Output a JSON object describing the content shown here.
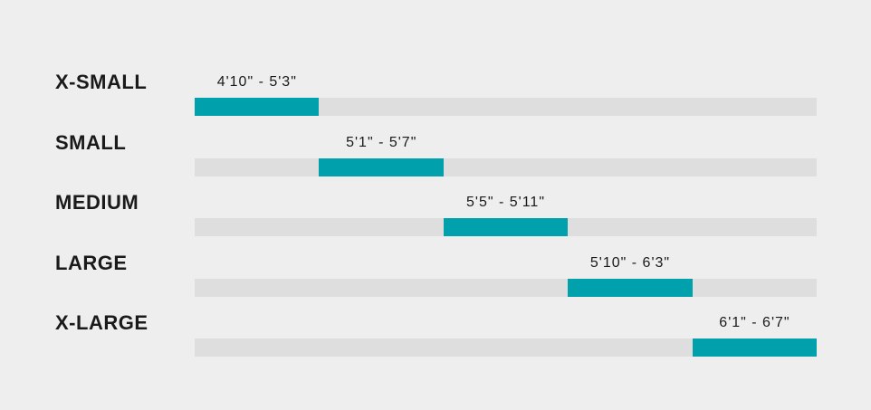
{
  "colors": {
    "background": "#eeeeee",
    "track": "#dedede",
    "bar": "#00a0ad",
    "text": "#1a1a1a"
  },
  "chart_data": {
    "type": "bar",
    "orientation": "horizontal-range",
    "title": "",
    "xlabel": "",
    "ylabel": "",
    "grid": false,
    "legend": "none",
    "x_range_slots": [
      0,
      5
    ],
    "rows": [
      {
        "name": "X-SMALL",
        "range_label": "4'10\" - 5'3\"",
        "slot": 0
      },
      {
        "name": "SMALL",
        "range_label": "5'1\" - 5'7\"",
        "slot": 1
      },
      {
        "name": "MEDIUM",
        "range_label": "5'5\" - 5'11\"",
        "slot": 2
      },
      {
        "name": "LARGE",
        "range_label": "5'10\" - 6'3\"",
        "slot": 3
      },
      {
        "name": "X-LARGE",
        "range_label": "6'1\" - 6'7\"",
        "slot": 4
      }
    ]
  }
}
